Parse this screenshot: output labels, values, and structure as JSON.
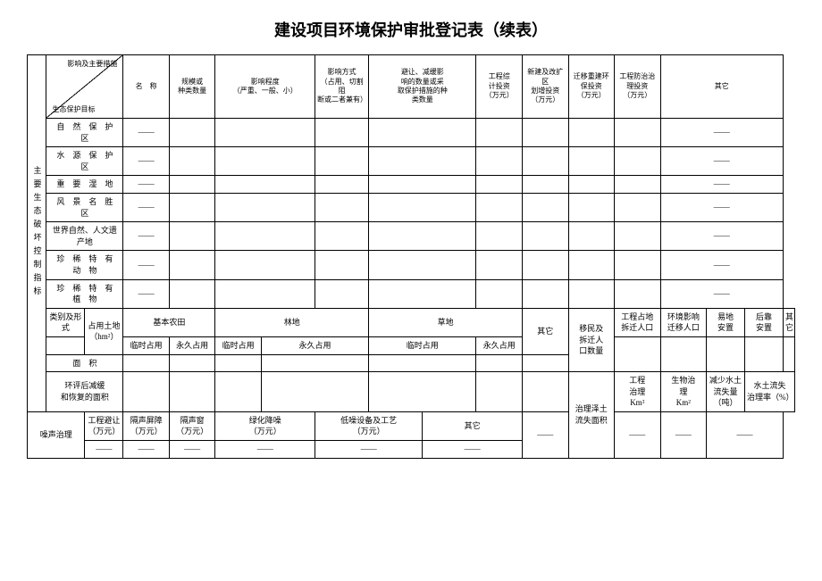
{
  "title": "建设项目环境保护审批登记表（续表）",
  "diag": {
    "top": "影响及主要措施",
    "bottom": "生态保护目标"
  },
  "side_label": "主要生态破坏控制指标",
  "head": {
    "name": "名　称",
    "scale": "规模或\n种类数量",
    "degree": "影响程度\n（严重、一般、小）",
    "mode": "影响方式\n（占用、切割阻\n断或二者兼有）",
    "avoid": "避让、减缓影\n响的数量或采\n取保护措施的种\n类数量",
    "invest": "工程综\n计投资\n（万元）",
    "new": "新建及改扩区\n划增投资\n（万元）",
    "fix": "迁移重建环\n保投资\n（万元）",
    "restore": "工程防治治\n理投资\n（万元）",
    "other": "其它"
  },
  "rows": [
    "自　然　保　护　区",
    "水　源　保　护　区",
    "重　要　湿　地",
    "风　景　名　胜　区",
    "世界自然、人文遗产地",
    "珍　稀　特　有　动　物",
    "珍　稀　特　有　植　物"
  ],
  "dash": "——",
  "double_dash": "——",
  "land": {
    "type_label": "类别及形式",
    "occ_label": "占用土地\n（hm²）",
    "farm": "基本农田",
    "forest": "林地",
    "grass": "草地",
    "other": "其它",
    "temp": "临时占用",
    "perm": "永久占用",
    "area": "面　积",
    "mig_label": "移民及\n拆迁人\n口数量",
    "mig_pop": "工程占地\n拆迁人口",
    "env_pop": "环境影响\n迁移人口",
    "easy": "易地\n安置",
    "back": "后靠\n安置",
    "other2": "其它"
  },
  "restore": {
    "label": "环评后减缓\n和恢复的面积",
    "noise_label": "噪声治理",
    "proj_let": "工程避让\n（万元）",
    "barrier": "隔声屏障\n（万元）",
    "window": "隔声窗\n（万元）",
    "green": "绿化降噪\n（万元）",
    "low": "低噪设备及工艺\n（万元）",
    "other": "其它",
    "slope_label": "治理泽土\n流失面积",
    "eng": "工程\n治理\nKm²",
    "bio": "生物治\n理\nKm²",
    "reduce": "减少水土\n流失量\n（吨）",
    "rate": "水土流失\n治理率（%）"
  }
}
